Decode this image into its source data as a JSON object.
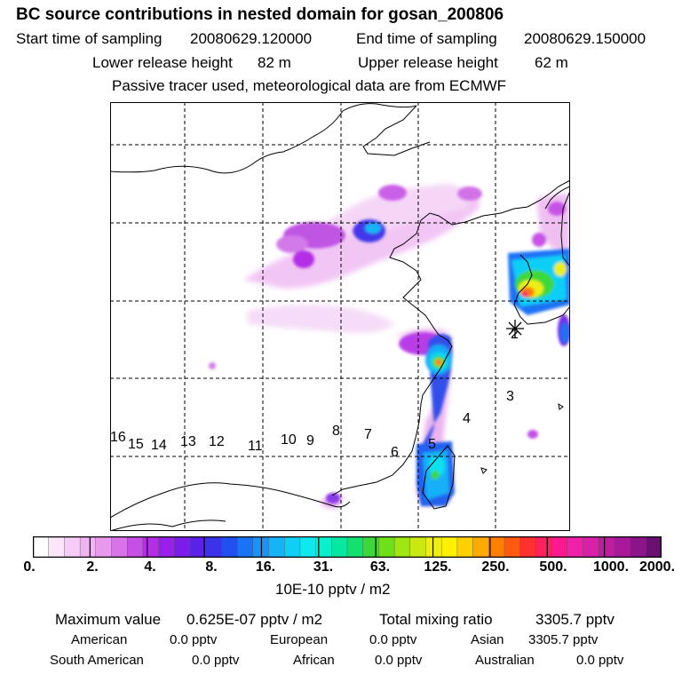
{
  "title": "BC  source contributions in nested domain for gosan_200806",
  "sampling": {
    "start_label": "Start time of sampling",
    "start_value": "20080629.120000",
    "end_label": "End time of sampling",
    "end_value": "20080629.150000"
  },
  "release": {
    "lower_label": "Lower release height",
    "lower_value": "82 m",
    "upper_label": "Upper release height",
    "upper_value": "62 m"
  },
  "tracer_note": "Passive tracer used, meteorological data are from ECMWF",
  "map": {
    "trajectory_labels": [
      "16",
      "15",
      "14",
      "13",
      "12",
      "11",
      "10",
      "9",
      "8",
      "7",
      "6",
      "5",
      "4",
      "3",
      "2"
    ]
  },
  "colorbar": {
    "unit": "10E-10 pptv / m2",
    "tick_labels": [
      "0.",
      "2.",
      "4.",
      "8.",
      "16.",
      "31.",
      "63.",
      "125.",
      "250.",
      "500.",
      "1000.",
      "2000."
    ],
    "colors": [
      "#ffffff",
      "#fbe6fb",
      "#f5ccf5",
      "#efb3f0",
      "#e899ec",
      "#d873e8",
      "#c64fe6",
      "#b32ee6",
      "#9a1fe8",
      "#7a1de8",
      "#5a22e8",
      "#3a33ea",
      "#2050f0",
      "#1a72f5",
      "#1893f8",
      "#16b3f8",
      "#10cff6",
      "#0ee8ee",
      "#0af0cc",
      "#06e8a0",
      "#14e070",
      "#3cd83a",
      "#6ee018",
      "#a0e612",
      "#cce812",
      "#eeee12",
      "#fff000",
      "#ffd000",
      "#ffaa00",
      "#ff8000",
      "#ff5a10",
      "#ff3030",
      "#ff2060",
      "#ff1890",
      "#f020a8",
      "#d820a8",
      "#c01ca0",
      "#a81898",
      "#8a1488",
      "#6a1070"
    ]
  },
  "stats": {
    "max_label": "Maximum value",
    "max_value": "0.625E-07 pptv / m2",
    "total_label": "Total mixing ratio",
    "total_value": "3305.7 pptv",
    "regions": [
      {
        "name": "American",
        "value": "0.0 pptv"
      },
      {
        "name": "European",
        "value": "0.0 pptv"
      },
      {
        "name": "Asian",
        "value": "3305.7 pptv"
      },
      {
        "name": "South American",
        "value": "0.0 pptv"
      },
      {
        "name": "African",
        "value": "0.0 pptv"
      },
      {
        "name": "Australian",
        "value": "0.0 pptv"
      }
    ]
  }
}
